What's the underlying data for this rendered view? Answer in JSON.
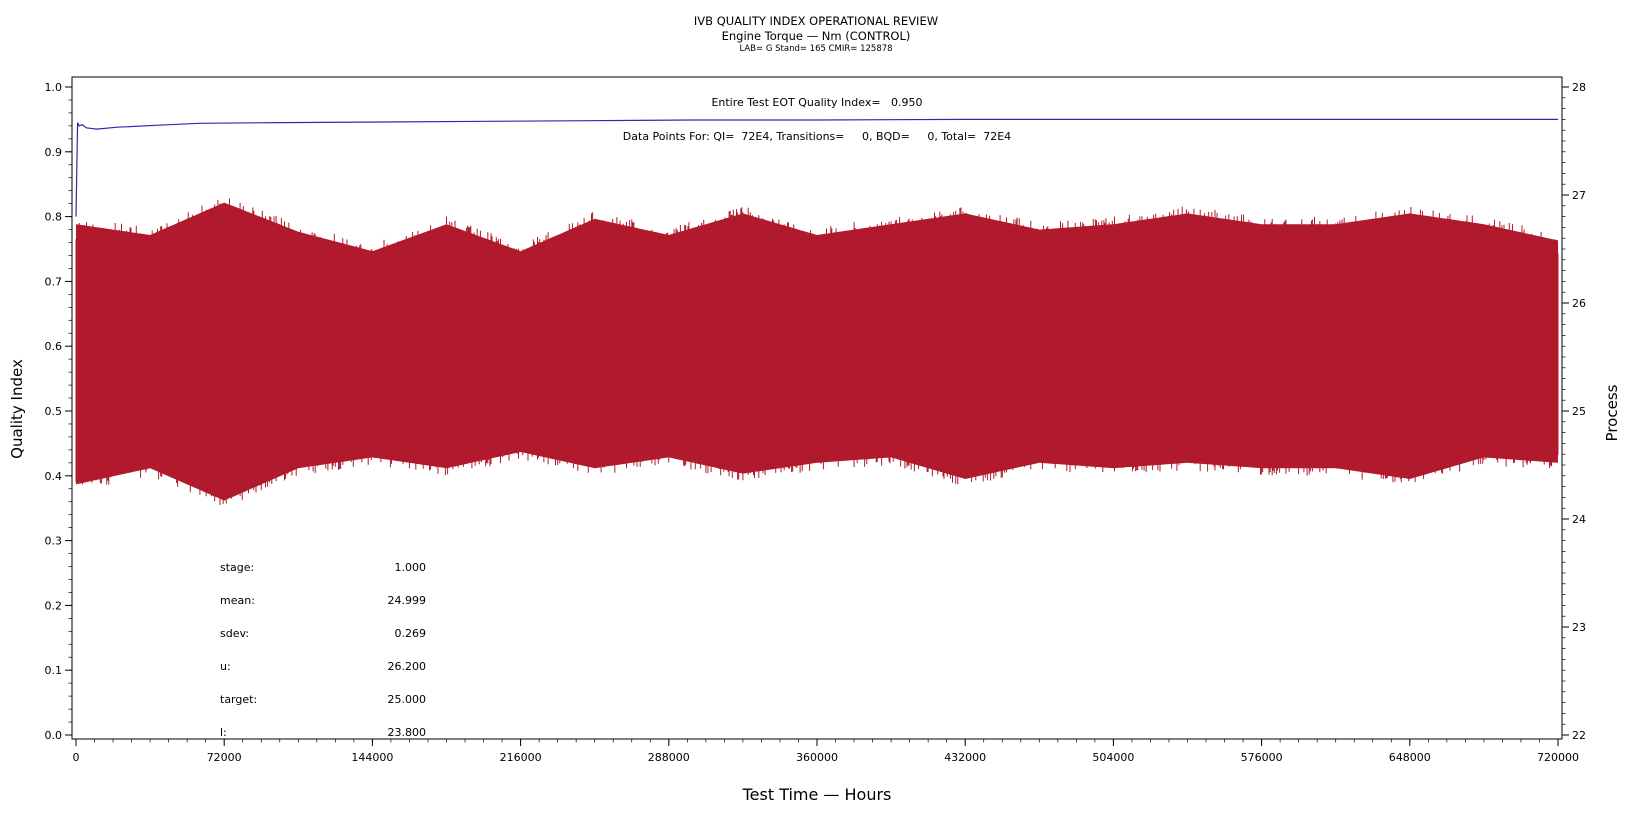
{
  "header": {
    "title": "IVB QUALITY INDEX OPERATIONAL REVIEW",
    "subtitle": "Engine Torque — Nm (CONTROL)",
    "info": "LAB= G Stand= 165 CMIR= 125878"
  },
  "annotations": {
    "quality_index": "Entire Test EOT Quality Index=   0.950",
    "data_points": "Data Points For: QI=  72E4, Transitions=     0, BQD=     0, Total=  72E4"
  },
  "stats": [
    {
      "label": "stage:",
      "value": "1.000"
    },
    {
      "label": "mean:",
      "value": "24.999"
    },
    {
      "label": "sdev:",
      "value": "0.269"
    },
    {
      "label": "u:",
      "value": "26.200"
    },
    {
      "label": "target:",
      "value": "25.000"
    },
    {
      "label": "l:",
      "value": "23.800"
    }
  ],
  "chart_data": {
    "type": "line",
    "xlabel": "Test Time — Hours",
    "ylabel_left": "Quality Index",
    "ylabel_right": "Process",
    "xlim": [
      0,
      720000
    ],
    "ylim_left": [
      0.0,
      1.0
    ],
    "ylim_right": [
      22,
      28
    ],
    "x_ticks": [
      "0",
      "72000",
      "144000",
      "216000",
      "288000",
      "360000",
      "432000",
      "504000",
      "576000",
      "648000",
      "720000"
    ],
    "y_ticks_left": [
      "0.0",
      "0.1",
      "0.2",
      "0.3",
      "0.4",
      "0.5",
      "0.6",
      "0.7",
      "0.8",
      "0.9",
      "1.0"
    ],
    "y_ticks_right": [
      "22",
      "23",
      "24",
      "25",
      "26",
      "27",
      "28"
    ],
    "series": [
      {
        "axis": "left",
        "color": "#2b2bb0",
        "x": [
          0,
          800,
          1500,
          3000,
          5000,
          10000,
          20000,
          40000,
          60000,
          100000,
          150000,
          200000,
          250000,
          300000,
          360000,
          432000,
          504000,
          576000,
          648000,
          720000
        ],
        "y": [
          0.8,
          0.945,
          0.94,
          0.942,
          0.937,
          0.935,
          0.938,
          0.941,
          0.944,
          0.945,
          0.946,
          0.947,
          0.948,
          0.949,
          0.949,
          0.95,
          0.95,
          0.95,
          0.95,
          0.95
        ]
      },
      {
        "axis": "right",
        "color": "#b01a2c",
        "x": [
          0,
          36000,
          72000,
          108000,
          144000,
          180000,
          216000,
          252000,
          288000,
          324000,
          360000,
          396000,
          432000,
          468000,
          504000,
          540000,
          576000,
          612000,
          648000,
          684000,
          720000
        ],
        "upper": [
          26.85,
          26.75,
          27.05,
          26.78,
          26.6,
          26.85,
          26.6,
          26.9,
          26.75,
          26.95,
          26.75,
          26.85,
          26.95,
          26.8,
          26.85,
          26.95,
          26.85,
          26.85,
          26.95,
          26.85,
          26.7
        ],
        "lower": [
          24.2,
          24.35,
          24.05,
          24.35,
          24.45,
          24.35,
          24.5,
          24.35,
          24.45,
          24.3,
          24.4,
          24.45,
          24.25,
          24.4,
          24.35,
          24.4,
          24.35,
          24.35,
          24.25,
          24.45,
          24.4
        ]
      }
    ]
  }
}
